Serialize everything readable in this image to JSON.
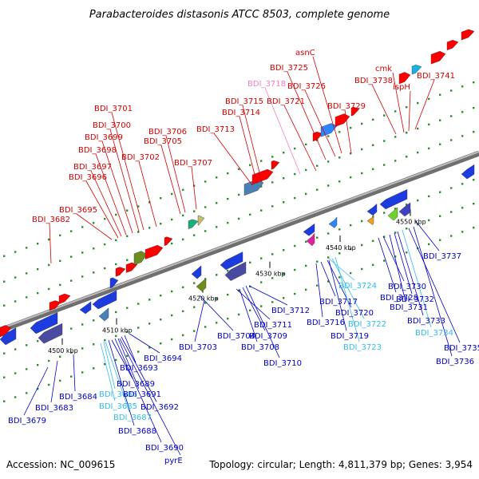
{
  "title": "Parabacteroides distasonis ATCC 8503, complete genome",
  "accession": "Accession: NC_009615",
  "topology": "Topology: circular; Length: 4,811,379 bp; Genes: 3,954",
  "colors": {
    "forward_label": "#d40000",
    "reverse_label": "#0000c8",
    "light_red_label": "#f080c0",
    "light_blue_label": "#33bbee",
    "backbone": "#8a8a8a",
    "tick": "#2e8b2e"
  },
  "ticks": [
    {
      "label": "4500 kbp"
    },
    {
      "label": "4510 kbp"
    },
    {
      "label": "4520 kbp"
    },
    {
      "label": "4530 kbp"
    },
    {
      "label": "4540 kbp"
    },
    {
      "label": "4550 kbp"
    }
  ],
  "forward_labels": [
    {
      "text": "BDI_3682",
      "color": "red"
    },
    {
      "text": "BDI_3695",
      "color": "red"
    },
    {
      "text": "BDI_3696",
      "color": "red"
    },
    {
      "text": "BDI_3697",
      "color": "red"
    },
    {
      "text": "BDI_3698",
      "color": "red"
    },
    {
      "text": "BDI_3699",
      "color": "red"
    },
    {
      "text": "BDI_3700",
      "color": "red"
    },
    {
      "text": "BDI_3701",
      "color": "red"
    },
    {
      "text": "BDI_3702",
      "color": "red"
    },
    {
      "text": "BDI_3705",
      "color": "red"
    },
    {
      "text": "BDI_3706",
      "color": "red"
    },
    {
      "text": "BDI_3707",
      "color": "red"
    },
    {
      "text": "BDI_3713",
      "color": "red"
    },
    {
      "text": "BDI_3714",
      "color": "red"
    },
    {
      "text": "BDI_3715",
      "color": "red"
    },
    {
      "text": "BDI_3718",
      "color": "pink"
    },
    {
      "text": "BDI_3721",
      "color": "red"
    },
    {
      "text": "BDI_3725",
      "color": "red"
    },
    {
      "text": "BDI_3726",
      "color": "red"
    },
    {
      "text": "asnC",
      "color": "red"
    },
    {
      "text": "BDI_3729",
      "color": "red"
    },
    {
      "text": "BDI_3738",
      "color": "red"
    },
    {
      "text": "cmk",
      "color": "red"
    },
    {
      "text": "ispH",
      "color": "red"
    },
    {
      "text": "BDI_3741",
      "color": "red"
    }
  ],
  "reverse_labels": [
    {
      "text": "BDI_3679",
      "color": "blue"
    },
    {
      "text": "BDI_3683",
      "color": "blue"
    },
    {
      "text": "BDI_3684",
      "color": "blue"
    },
    {
      "text": "BDI_3685",
      "color": "cyan"
    },
    {
      "text": "BDI_3686",
      "color": "cyan"
    },
    {
      "text": "BDI_3687",
      "color": "cyan"
    },
    {
      "text": "BDI_3688",
      "color": "blue"
    },
    {
      "text": "BDI_3689",
      "color": "blue"
    },
    {
      "text": "BDI_3690",
      "color": "blue"
    },
    {
      "text": "BDI_3691",
      "color": "blue"
    },
    {
      "text": "BDI_3692",
      "color": "blue"
    },
    {
      "text": "BDI_3693",
      "color": "blue"
    },
    {
      "text": "BDI_3694",
      "color": "blue"
    },
    {
      "text": "pyrE",
      "color": "blue"
    },
    {
      "text": "BDI_3703",
      "color": "blue"
    },
    {
      "text": "BDI_3704",
      "color": "blue"
    },
    {
      "text": "BDI_3708",
      "color": "blue"
    },
    {
      "text": "BDI_3709",
      "color": "blue"
    },
    {
      "text": "BDI_3710",
      "color": "blue"
    },
    {
      "text": "BDI_3711",
      "color": "blue"
    },
    {
      "text": "BDI_3712",
      "color": "blue"
    },
    {
      "text": "BDI_3716",
      "color": "blue"
    },
    {
      "text": "BDI_3717",
      "color": "blue"
    },
    {
      "text": "BDI_3719",
      "color": "blue"
    },
    {
      "text": "BDI_3720",
      "color": "blue"
    },
    {
      "text": "BDI_3722",
      "color": "cyan"
    },
    {
      "text": "BDI_3723",
      "color": "cyan"
    },
    {
      "text": "BDI_3724",
      "color": "cyan"
    },
    {
      "text": "BDI_3728",
      "color": "blue"
    },
    {
      "text": "BDI_3730",
      "color": "blue"
    },
    {
      "text": "BDI_3731",
      "color": "blue"
    },
    {
      "text": "BDI_3732",
      "color": "blue"
    },
    {
      "text": "BDI_3733",
      "color": "blue"
    },
    {
      "text": "BDI_3734",
      "color": "cyan"
    },
    {
      "text": "BDI_3735",
      "color": "blue"
    },
    {
      "text": "BDI_3736",
      "color": "blue"
    },
    {
      "text": "BDI_3737",
      "color": "blue"
    }
  ]
}
